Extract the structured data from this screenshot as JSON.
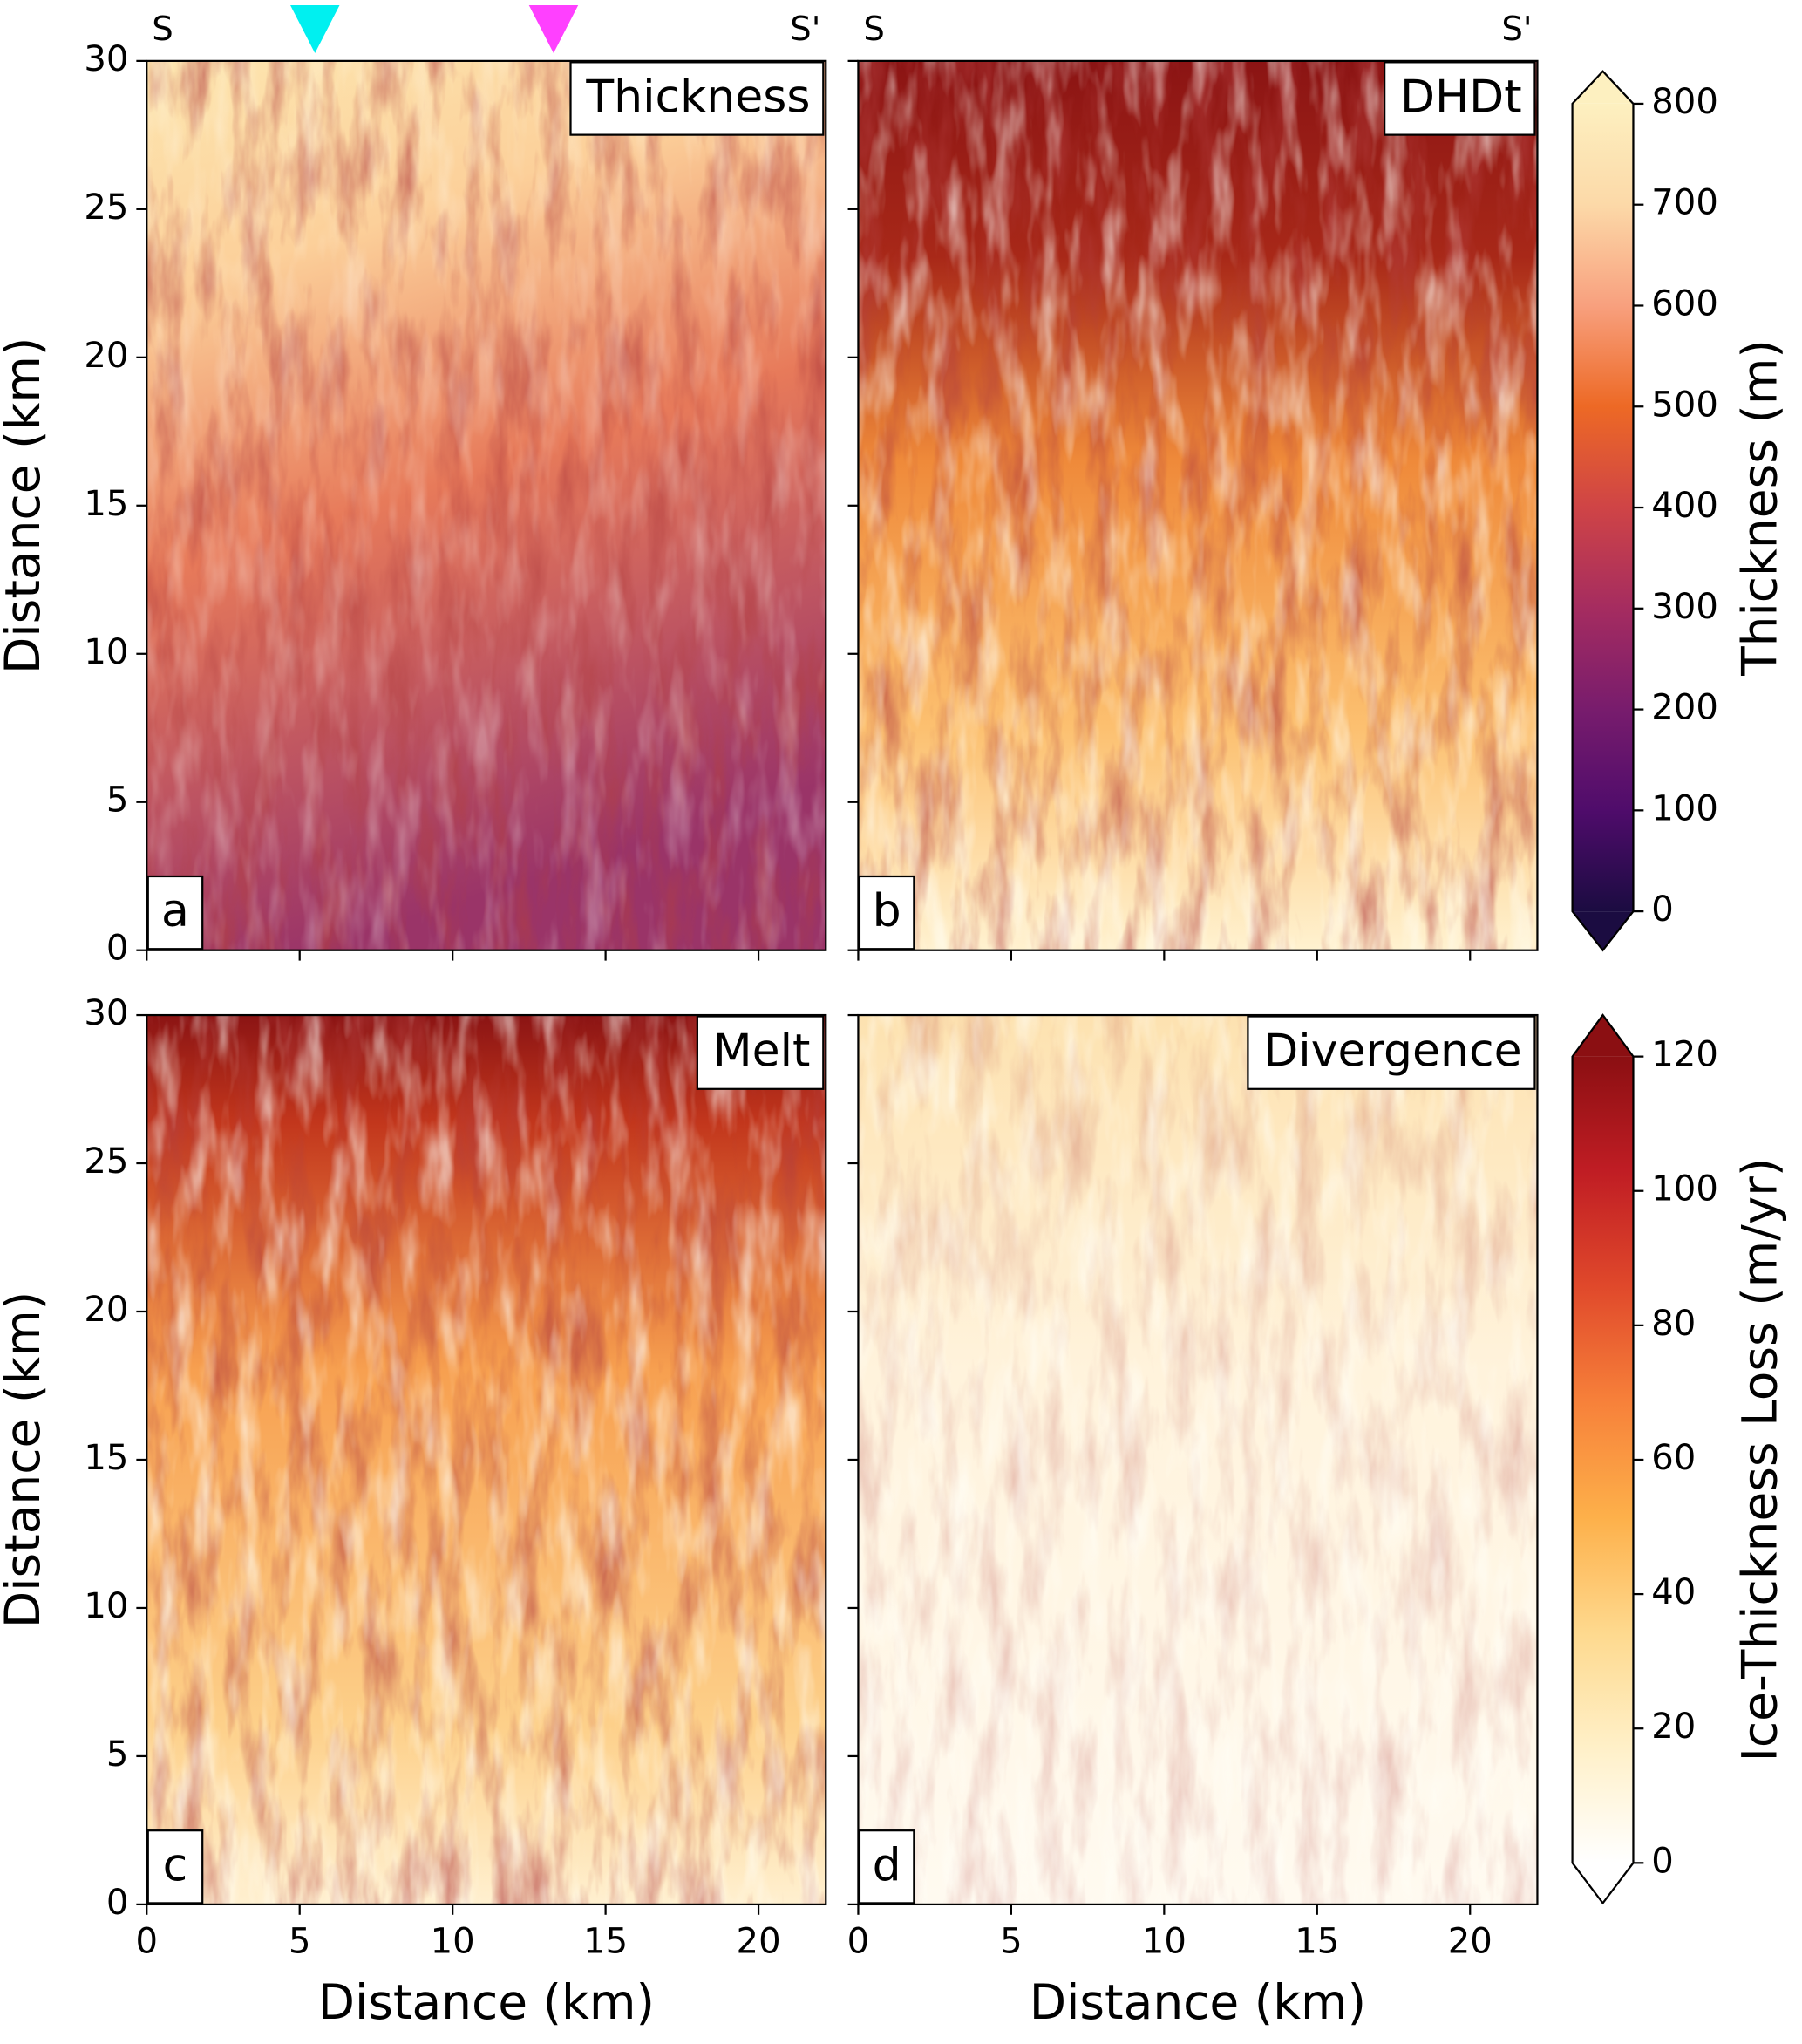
{
  "chart_data": [
    {
      "type": "heatmap",
      "title": "Thickness",
      "panel_label": "a",
      "section_start": "S",
      "section_end": "S'",
      "markers": [
        {
          "x": 5.5,
          "color": "#00f0f0"
        },
        {
          "x": 13.3,
          "color": "#ff40ff"
        }
      ],
      "xlim": [
        0,
        22.2
      ],
      "ylim": [
        0,
        30
      ],
      "xticks": [
        0,
        5,
        10,
        15,
        20
      ],
      "yticks": [
        0,
        5,
        10,
        15,
        20,
        25,
        30
      ],
      "ylabel": "Distance (km)"
    },
    {
      "type": "heatmap",
      "title": "DHDt",
      "panel_label": "b",
      "section_start": "S",
      "section_end": "S'",
      "xlim": [
        0,
        22.2
      ],
      "ylim": [
        0,
        30
      ],
      "xticks": [
        0,
        5,
        10,
        15,
        20
      ],
      "yticks": [
        0,
        5,
        10,
        15,
        20,
        25,
        30
      ]
    },
    {
      "type": "heatmap",
      "title": "Melt",
      "panel_label": "c",
      "xlim": [
        0,
        22.2
      ],
      "ylim": [
        0,
        30
      ],
      "xticks": [
        0,
        5,
        10,
        15,
        20
      ],
      "yticks": [
        0,
        5,
        10,
        15,
        20,
        25,
        30
      ],
      "xlabel": "Distance (km)",
      "ylabel": "Distance (km)"
    },
    {
      "type": "heatmap",
      "title": "Divergence",
      "panel_label": "d",
      "xlim": [
        0,
        22.2
      ],
      "ylim": [
        0,
        30
      ],
      "xticks": [
        0,
        5,
        10,
        15,
        20
      ],
      "yticks": [
        0,
        5,
        10,
        15,
        20,
        25,
        30
      ],
      "xlabel": "Distance (km)"
    }
  ],
  "colorbars": [
    {
      "label": "Thickness (m)",
      "lim": [
        0,
        800
      ],
      "ticks": [
        0,
        100,
        200,
        300,
        400,
        500,
        600,
        700,
        800
      ],
      "colors": [
        "#1b0c41",
        "#4f0c6b",
        "#781c6d",
        "#a52c60",
        "#cf4446",
        "#ed6925",
        "#f8a07e",
        "#fcd9a8",
        "#fdf0c0"
      ]
    },
    {
      "label": "Ice-Thickness Loss (m/yr)",
      "lim": [
        0,
        120
      ],
      "ticks": [
        0,
        20,
        40,
        60,
        80,
        100,
        120
      ],
      "colors": [
        "#ffffff",
        "#fff0c8",
        "#fed98e",
        "#fdb04a",
        "#f7813a",
        "#e0492b",
        "#c01d24",
        "#8b0f12"
      ]
    }
  ]
}
